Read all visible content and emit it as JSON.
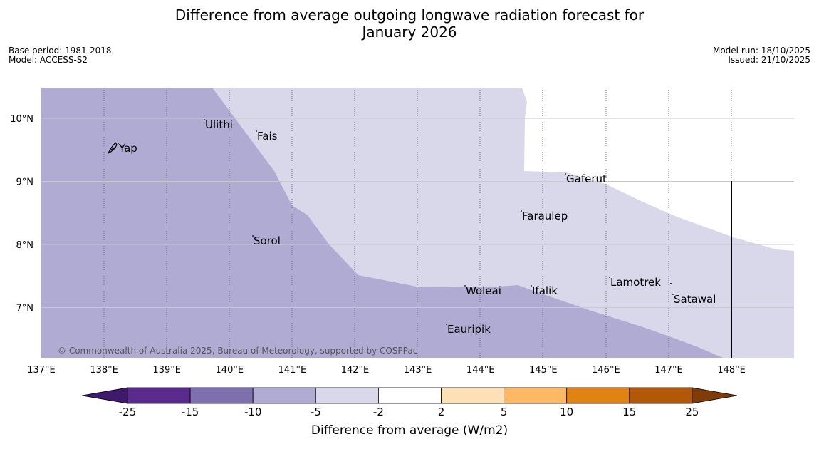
{
  "title": {
    "line1": "Difference from average outgoing longwave radiation forecast for",
    "line2": "January 2026"
  },
  "meta": {
    "base_period": "Base period: 1981-2018",
    "model": "Model: ACCESS-S2",
    "model_run": "Model run: 18/10/2025",
    "issued": "Issued: 21/10/2025"
  },
  "map": {
    "copyright": "© Commonwealth of Australia 2025, Bureau of Meteorology, supported by COSPPac",
    "lon_labels": [
      "137°E",
      "138°E",
      "139°E",
      "140°E",
      "141°E",
      "142°E",
      "143°E",
      "144°E",
      "145°E",
      "146°E",
      "147°E",
      "148°E"
    ],
    "lat_labels": [
      "10°N",
      "9°N",
      "8°N",
      "7°N"
    ],
    "places": [
      {
        "name": "Yap"
      },
      {
        "name": "Ulithi"
      },
      {
        "name": "Fais"
      },
      {
        "name": "Gaferut"
      },
      {
        "name": "Faraulep"
      },
      {
        "name": "Sorol"
      },
      {
        "name": "Lamotrek"
      },
      {
        "name": "Woleai"
      },
      {
        "name": "Ifalik"
      },
      {
        "name": "Satawal"
      },
      {
        "name": "Eauripik"
      }
    ],
    "colors": {
      "minus10_minus5": "#b0abd2",
      "minus5_minus2": "#d8d8ea"
    }
  },
  "colorbar": {
    "title": "Difference from average (W/m2)",
    "ticks": [
      "-25",
      "-15",
      "-10",
      "-5",
      "-2",
      "2",
      "5",
      "10",
      "15",
      "25"
    ],
    "colors": [
      "#3f1a6c",
      "#5a2a8c",
      "#7e70ae",
      "#b0abd2",
      "#d8d8ea",
      "#ffffff",
      "#fee0b6",
      "#fdb863",
      "#e08214",
      "#b35806",
      "#7f3b08"
    ]
  }
}
